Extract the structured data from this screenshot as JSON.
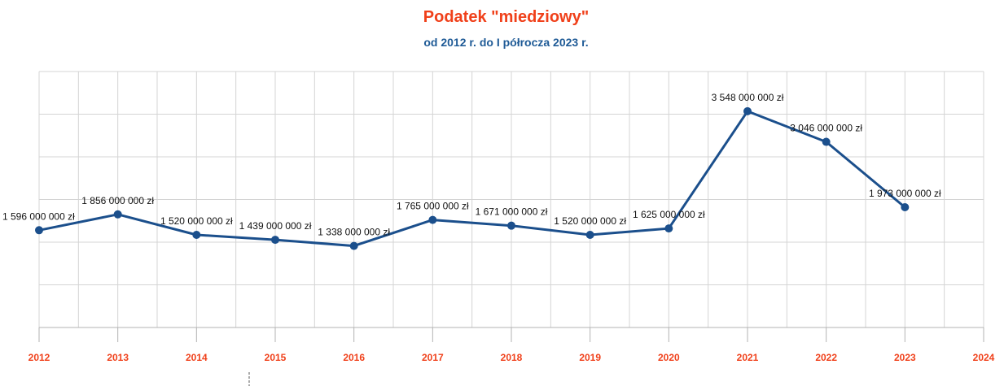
{
  "chart_data": {
    "type": "line",
    "title": "Podatek \"miedziowy\"",
    "subtitle": "od 2012 r. do I półrocza 2023 r.",
    "x_ticks": [
      "2012",
      "2013",
      "2014",
      "2015",
      "2016",
      "2017",
      "2018",
      "2019",
      "2020",
      "2021",
      "2022",
      "2023",
      "2024"
    ],
    "xlim": [
      2012,
      2024
    ],
    "ylim": [
      0,
      4200000000
    ],
    "grid": true,
    "series": [
      {
        "color": "#1b4f8c",
        "points": [
          {
            "x": 2012,
            "y": 1596000000,
            "label": "1 596 000 000 zł"
          },
          {
            "x": 2013,
            "y": 1856000000,
            "label": "1 856 000 000 zł"
          },
          {
            "x": 2014,
            "y": 1520000000,
            "label": "1 520 000 000 zł"
          },
          {
            "x": 2015,
            "y": 1439000000,
            "label": "1 439 000 000 zł"
          },
          {
            "x": 2016,
            "y": 1338000000,
            "label": "1 338 000 000 zł"
          },
          {
            "x": 2017,
            "y": 1765000000,
            "label": "1 765 000 000 zł"
          },
          {
            "x": 2018,
            "y": 1671000000,
            "label": "1 671 000 000 zł"
          },
          {
            "x": 2019,
            "y": 1520000000,
            "label": "1 520 000 000 zł"
          },
          {
            "x": 2020,
            "y": 1625000000,
            "label": "1 625 000 000 zł"
          },
          {
            "x": 2021,
            "y": 3548000000,
            "label": "3 548 000 000 zł"
          },
          {
            "x": 2022,
            "y": 3046000000,
            "label": "3 046 000 000 zł"
          },
          {
            "x": 2023,
            "y": 1973000000,
            "label": "1 973 000 000 zł"
          }
        ]
      }
    ]
  }
}
